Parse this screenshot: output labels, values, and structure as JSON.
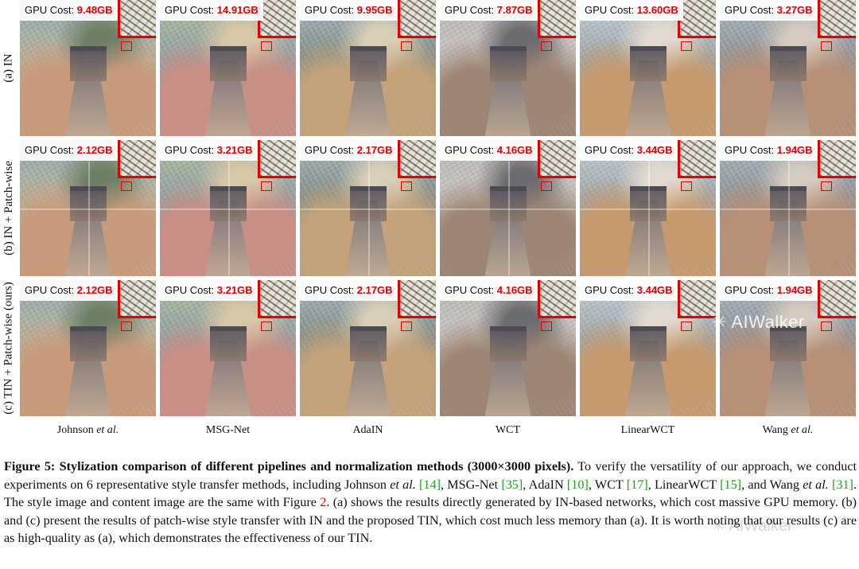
{
  "rows": [
    {
      "label": "(a) IN",
      "patch": false,
      "costs": [
        "9.48GB",
        "14.91GB",
        "9.95GB",
        "7.87GB",
        "13.60GB",
        "3.27GB"
      ]
    },
    {
      "label": "(b) IN + Patch-wise",
      "patch": true,
      "costs": [
        "2.12GB",
        "3.21GB",
        "2.17GB",
        "4.16GB",
        "3.44GB",
        "1.94GB"
      ]
    },
    {
      "label": "(c) TIN + Patch-wise (ours)",
      "patch": false,
      "costs": [
        "2.12GB",
        "3.21GB",
        "2.17GB",
        "4.16GB",
        "3.44GB",
        "1.94GB"
      ]
    }
  ],
  "gpu_prefix": "GPU Cost: ",
  "methods": [
    {
      "name": "Johnson ",
      "em": "et al."
    },
    {
      "name": "MSG-Net",
      "em": ""
    },
    {
      "name": "AdaIN",
      "em": ""
    },
    {
      "name": "WCT",
      "em": ""
    },
    {
      "name": "LinearWCT",
      "em": ""
    },
    {
      "name": "Wang ",
      "em": "et al."
    }
  ],
  "palettes": [
    [
      "#8fa7b3",
      "#c89a7c",
      "#b7b39a",
      "#6f7f66"
    ],
    [
      "#b5b89a",
      "#c98f84",
      "#8aa2a8",
      "#d7c8a8"
    ],
    [
      "#a9b7bd",
      "#c4a37b",
      "#7c8b86",
      "#d9cfb8"
    ],
    [
      "#b9b3ae",
      "#9c8574",
      "#c9c6c4",
      "#6d6b70"
    ],
    [
      "#c7ccd0",
      "#c69a6e",
      "#9aa7ad",
      "#e2dad0"
    ],
    [
      "#aab5bd",
      "#b79077",
      "#8c9499",
      "#d5cbc0"
    ]
  ],
  "caption": {
    "lead": "Figure 5: Stylization comparison of different pipelines and normalization methods (3000×3000 pixels).",
    "s1": " To verify the versatility of our approach, we conduct experiments on 6 representative style transfer methods, including Johnson ",
    "etal1": "et al.",
    "c14": "[14]",
    "s2": ", MSG-Net ",
    "c35": "[35]",
    "s3": ", AdaIN ",
    "c10": "[10]",
    "s4": ", WCT ",
    "c17": "[17]",
    "s5": ", LinearWCT ",
    "c15": "[15]",
    "s6": ", and Wang ",
    "etal2": "et al.",
    "c31": "[31]",
    "s7": ". The style image and content image are the same with Figure ",
    "fig2": "2",
    "s8": ". (a) shows the results directly generated by IN-based networks, which cost massive GPU memory. (b) and (c) present the results of patch-wise style transfer with IN and the proposed TIN, which cost much less memory than (a). It is worth noting that our results (c) are as high-quality as (a), which demonstrates the effectiveness of our TIN."
  },
  "watermark": "AIWalker"
}
